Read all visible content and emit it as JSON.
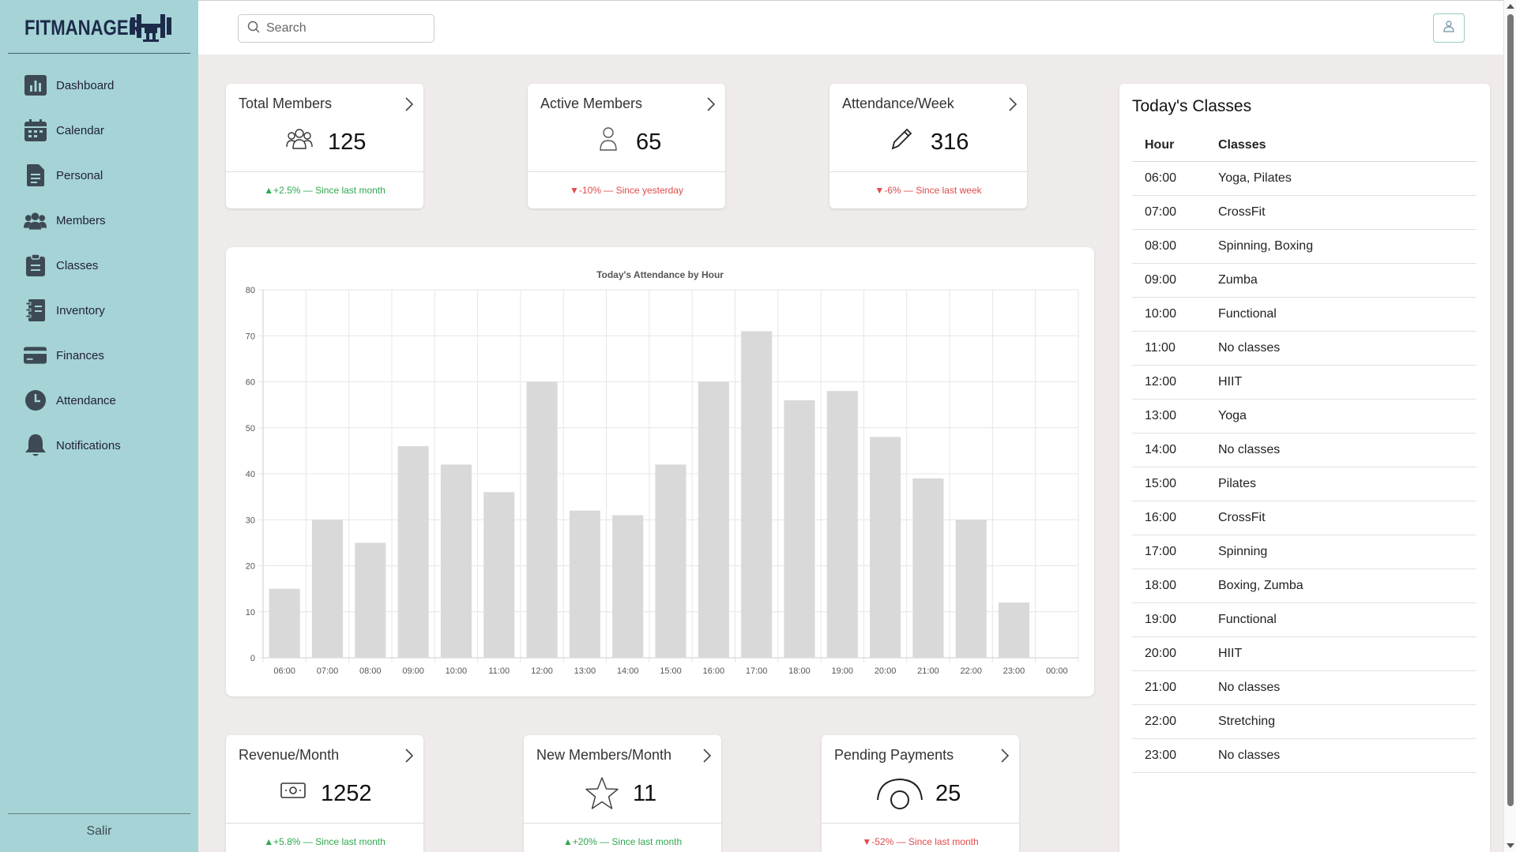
{
  "app": {
    "logo_text": "FITMANAGER"
  },
  "search": {
    "placeholder": "Search"
  },
  "sidebar": {
    "items": [
      {
        "label": "Dashboard",
        "icon": "bar-chart-icon"
      },
      {
        "label": "Calendar",
        "icon": "calendar-icon"
      },
      {
        "label": "Personal",
        "icon": "document-icon"
      },
      {
        "label": "Members",
        "icon": "users-icon"
      },
      {
        "label": "Classes",
        "icon": "clipboard-icon"
      },
      {
        "label": "Inventory",
        "icon": "notebook-icon"
      },
      {
        "label": "Finances",
        "icon": "credit-card-icon"
      },
      {
        "label": "Attendance",
        "icon": "clock-icon"
      },
      {
        "label": "Notifications",
        "icon": "bell-icon"
      }
    ],
    "logout_label": "Salir"
  },
  "stats": {
    "total_members": {
      "title": "Total Members",
      "value": "125",
      "change": "▲+2.5% — Since last month",
      "trend": "up"
    },
    "active_members": {
      "title": "Active Members",
      "value": "65",
      "change": "▼-10% — Since yesterday",
      "trend": "down"
    },
    "attendance_week": {
      "title": "Attendance/Week",
      "value": "316",
      "change": "▼-6% — Since last week",
      "trend": "down"
    },
    "revenue_month": {
      "title": "Revenue/Month",
      "value": "1252",
      "change": "▲+5.8% — Since last month",
      "trend": "up"
    },
    "new_members_month": {
      "title": "New Members/Month",
      "value": "11",
      "change": "▲+20% — Since last month",
      "trend": "up"
    },
    "pending_payments": {
      "title": "Pending Payments",
      "value": "25",
      "change": "▼-52% — Since last month",
      "trend": "down"
    }
  },
  "colors": {
    "up": "#2fa84f",
    "down": "#e04a4a",
    "sidebar": "#a5d3d6",
    "bar": "#d9d9d9"
  },
  "chart_data": {
    "type": "bar",
    "title": "Today's Attendance by Hour",
    "xlabel": "",
    "ylabel": "",
    "categories": [
      "06:00",
      "07:00",
      "08:00",
      "09:00",
      "10:00",
      "11:00",
      "12:00",
      "13:00",
      "14:00",
      "15:00",
      "16:00",
      "17:00",
      "18:00",
      "19:00",
      "20:00",
      "21:00",
      "22:00",
      "23:00",
      "00:00"
    ],
    "values": [
      15,
      30,
      25,
      46,
      42,
      36,
      60,
      32,
      31,
      42,
      60,
      71,
      56,
      58,
      48,
      39,
      30,
      12,
      0
    ],
    "ylim": [
      0,
      80
    ],
    "yticks": [
      0,
      10,
      20,
      30,
      40,
      50,
      60,
      70,
      80
    ],
    "grid": true,
    "legend": "none"
  },
  "classes": {
    "title": "Today's Classes",
    "headers": [
      "Hour",
      "Classes"
    ],
    "rows": [
      [
        "06:00",
        "Yoga, Pilates"
      ],
      [
        "07:00",
        "CrossFit"
      ],
      [
        "08:00",
        "Spinning, Boxing"
      ],
      [
        "09:00",
        "Zumba"
      ],
      [
        "10:00",
        "Functional"
      ],
      [
        "11:00",
        "No classes"
      ],
      [
        "12:00",
        "HIIT"
      ],
      [
        "13:00",
        "Yoga"
      ],
      [
        "14:00",
        "No classes"
      ],
      [
        "15:00",
        "Pilates"
      ],
      [
        "16:00",
        "CrossFit"
      ],
      [
        "17:00",
        "Spinning"
      ],
      [
        "18:00",
        "Boxing, Zumba"
      ],
      [
        "19:00",
        "Functional"
      ],
      [
        "20:00",
        "HIIT"
      ],
      [
        "21:00",
        "No classes"
      ],
      [
        "22:00",
        "Stretching"
      ],
      [
        "23:00",
        "No classes"
      ]
    ]
  }
}
